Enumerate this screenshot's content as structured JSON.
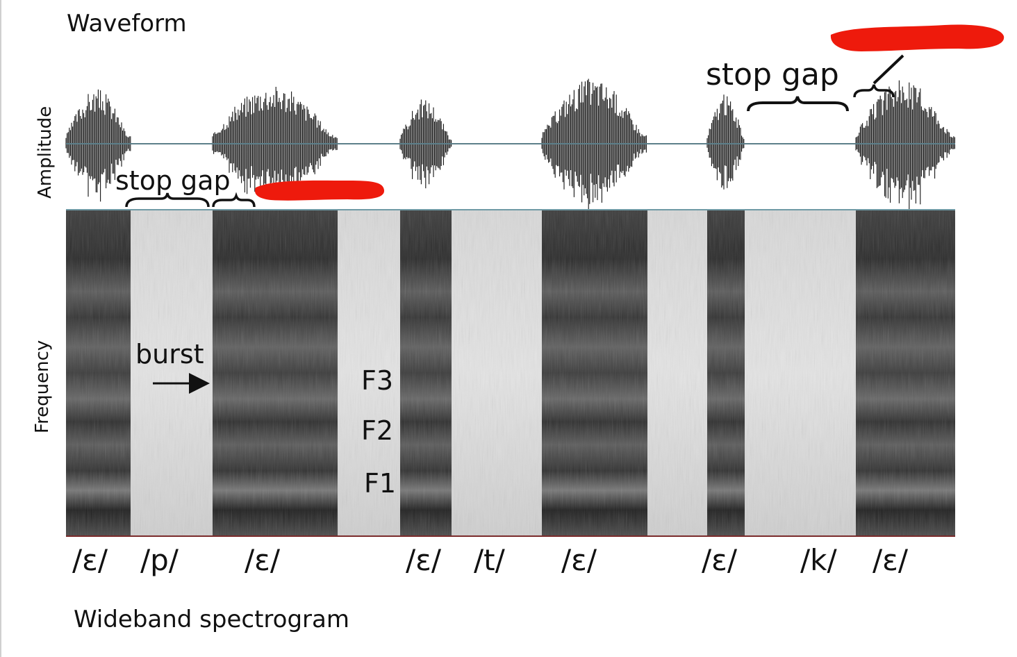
{
  "waveform": {
    "title": "Waveform",
    "ylabel": "Amplitude",
    "annotations": {
      "stop_gap_left": "stop gap",
      "stop_gap_right": "stop gap"
    }
  },
  "spectrogram": {
    "title": "Wideband spectrogram",
    "ylabel": "Frequency",
    "burst_label": "burst",
    "formants": [
      "F3",
      "F2",
      "F1"
    ],
    "phones": [
      "/ɛ/",
      "/p/",
      "/ɛ/",
      "/ɛ/",
      "/t/",
      "/ɛ/",
      "/ɛ/",
      "/k/",
      "/ɛ/"
    ]
  },
  "colors": {
    "redaction": "#ee1a0c",
    "wave": "#111111",
    "baseline": "#5c7f8a",
    "axis_bottom": "#7a2a2a"
  },
  "redactions": [
    "red scribble over label near top-right bracket",
    "red scribble over label near lower-left bracket"
  ]
}
